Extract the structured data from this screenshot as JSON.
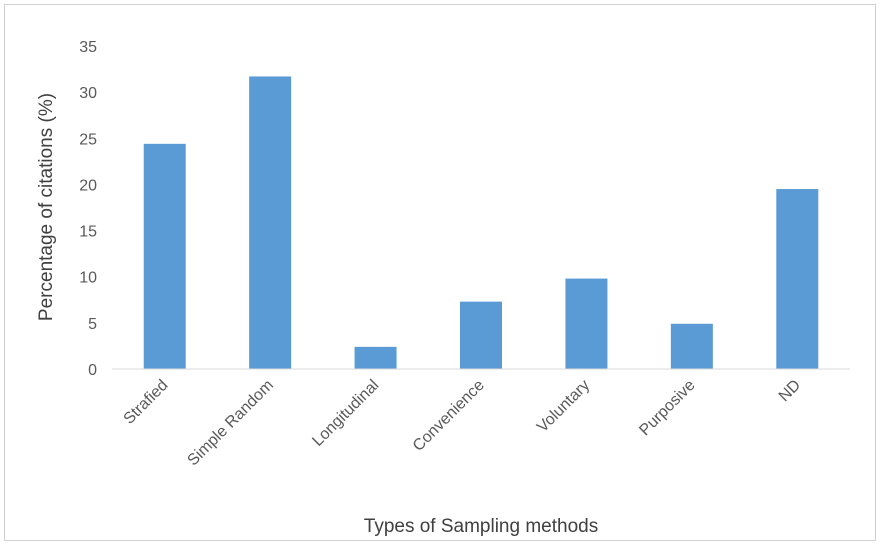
{
  "chart_data": {
    "type": "bar",
    "title": "",
    "xlabel": "Types of Sampling methods",
    "ylabel": "Percentage of citations (%)",
    "categories": [
      "Strafied",
      "Simple Random",
      "Longitudinal",
      "Convenience",
      "Voluntary",
      "Purposive",
      "ND"
    ],
    "values": [
      24.4,
      31.7,
      2.4,
      7.3,
      9.8,
      4.9,
      19.5
    ],
    "ylim": [
      0,
      35
    ],
    "yticks": [
      0,
      5,
      10,
      15,
      20,
      25,
      30,
      35
    ],
    "grid": false,
    "legend": "none",
    "bar_color": "#5b9bd5"
  }
}
